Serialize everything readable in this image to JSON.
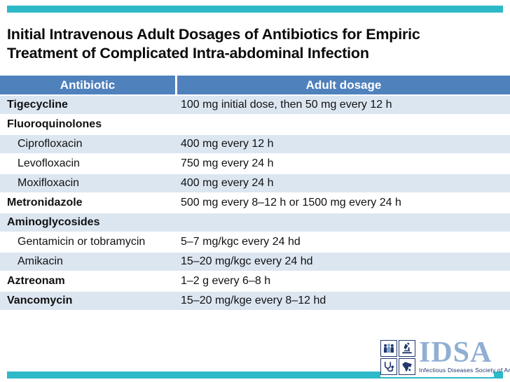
{
  "slide": {
    "title_line1": "Initial Intravenous Adult Dosages of Antibiotics for Empiric",
    "title_line2": "Treatment of Complicated Intra-abdominal Infection",
    "accent_color": "#2eb9c9",
    "background_color": "#ffffff"
  },
  "table": {
    "columns": [
      "Antibiotic",
      "Adult dosage"
    ],
    "header_bg": "#4f81bd",
    "header_text_color": "#ffffff",
    "band_color": "#dce6f1",
    "rows": [
      {
        "antibiotic": "Tigecycline",
        "dosage": "100 mg initial dose, then 50 mg every 12 h",
        "indent": false
      },
      {
        "antibiotic": "Fluoroquinolones",
        "dosage": "",
        "indent": false
      },
      {
        "antibiotic": "Ciprofloxacin",
        "dosage": "400 mg every 12 h",
        "indent": true
      },
      {
        "antibiotic": "Levofloxacin",
        "dosage": "750 mg every 24 h",
        "indent": true
      },
      {
        "antibiotic": "Moxifloxacin",
        "dosage": "400 mg every 24 h",
        "indent": true
      },
      {
        "antibiotic": "Metronidazole",
        "dosage": "500 mg every 8–12 h or 1500 mg every 24 h",
        "indent": false
      },
      {
        "antibiotic": "Aminoglycosides",
        "dosage": "",
        "indent": false
      },
      {
        "antibiotic": "Gentamicin or tobramycin",
        "dosage": "5–7 mg/kgc every 24 hd",
        "indent": true
      },
      {
        "antibiotic": "Amikacin",
        "dosage": "15–20 mg/kgc every 24 hd",
        "indent": true
      },
      {
        "antibiotic": "Aztreonam",
        "dosage": "1–2 g every 6–8 h",
        "indent": false
      },
      {
        "antibiotic": "Vancomycin",
        "dosage": "15–20 mg/kge every 8–12 hd",
        "indent": false
      }
    ]
  },
  "logo": {
    "wordmark": "IDSA",
    "tagline": "Infectious Diseases Society of America",
    "wordmark_color": "#8fafd3",
    "navy_color": "#24386f",
    "tiles": [
      "people-icon",
      "microscope-icon",
      "stethoscope-icon",
      "map-icon"
    ]
  }
}
